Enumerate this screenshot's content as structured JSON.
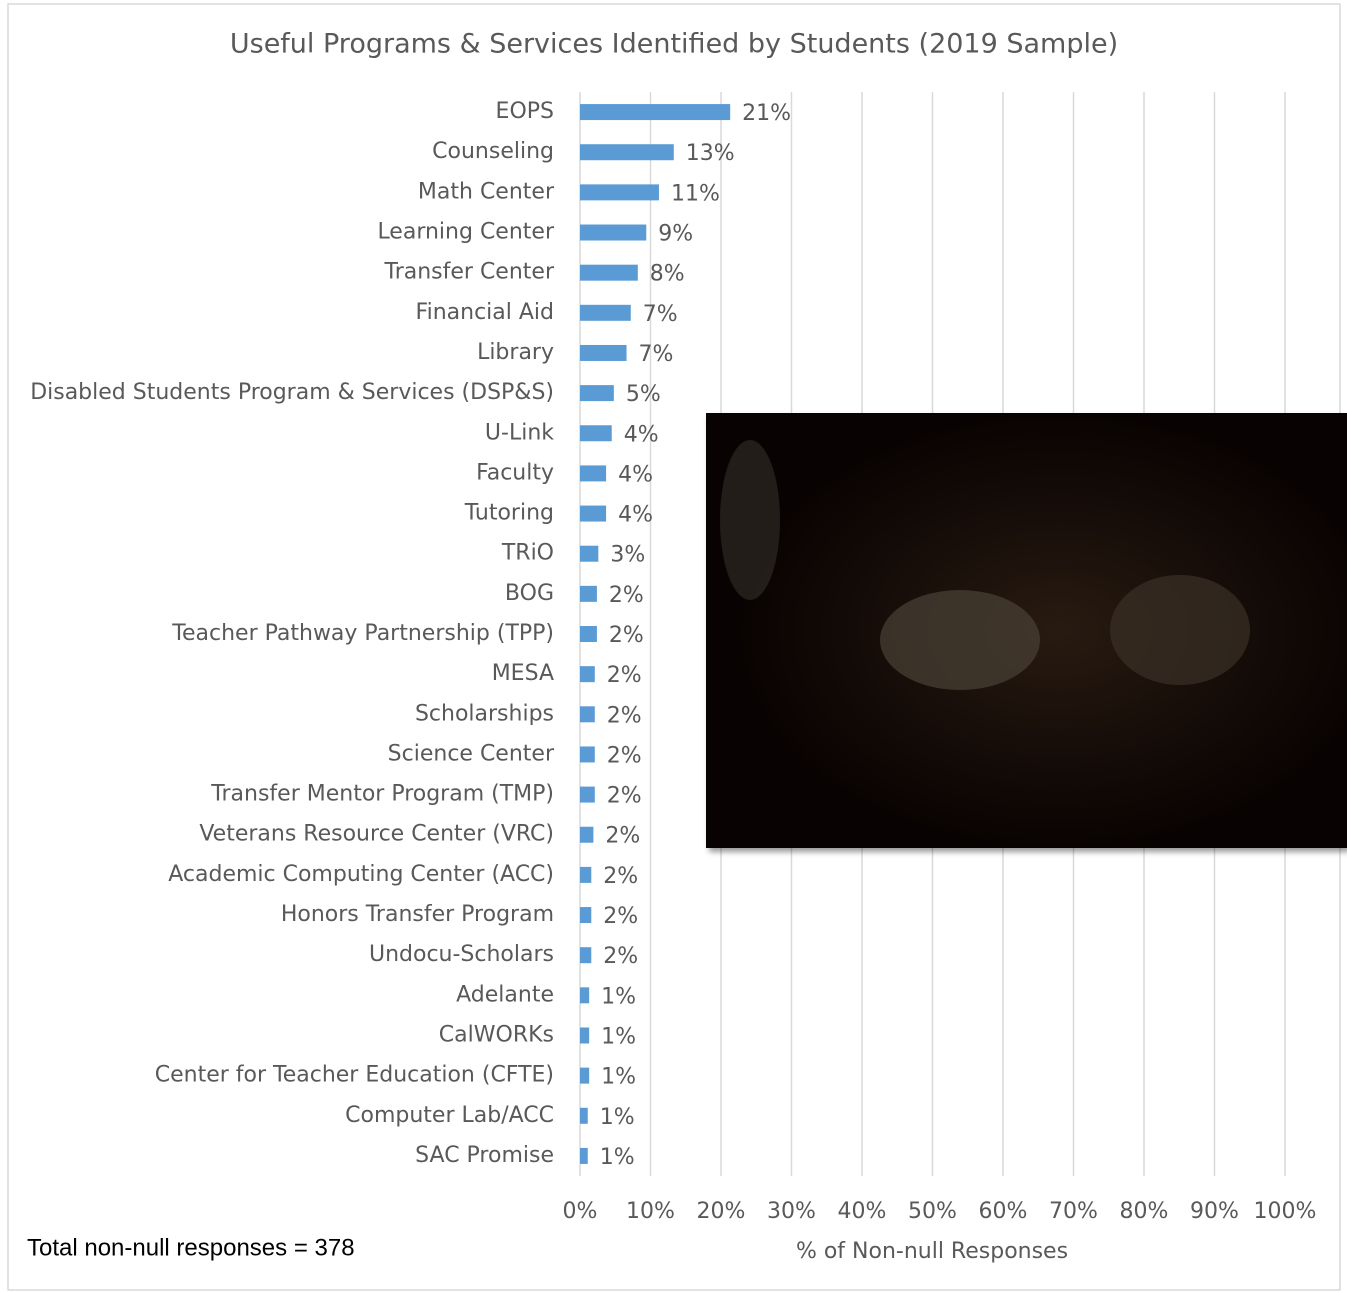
{
  "chart_data": {
    "type": "barh",
    "title": "Useful Programs & Services Identified by Students (2019 Sample)",
    "x_label": "% of Non-null Responses",
    "annotation": "Total non-null responses = 378",
    "color": "#5b9bd5",
    "grid": true,
    "categories": [
      "EOPS",
      "Counseling",
      "Math Center",
      "Learning Center",
      "Transfer Center",
      "Financial Aid",
      "Library",
      "Disabled Students Program & Services (DSP&S)",
      "U-Link",
      "Faculty",
      "Tutoring",
      "TRiO",
      "BOG",
      "Teacher Pathway Partnership (TPP)",
      "MESA",
      "Scholarships",
      "Science Center",
      "Transfer Mentor Program (TMP)",
      "Veterans Resource Center (VRC)",
      "Academic Computing Center (ACC)",
      "Honors Transfer Program",
      "Undocu-Scholars",
      "Adelante",
      "CalWORKs",
      "Center for Teacher Education (CFTE)",
      "Computer Lab/ACC",
      "SAC Promise"
    ],
    "values": [
      21.3,
      13.3,
      11.2,
      9.4,
      8.2,
      7.2,
      6.6,
      4.8,
      4.5,
      3.7,
      3.7,
      2.6,
      2.4,
      2.4,
      2.1,
      2.1,
      2.1,
      2.1,
      1.9,
      1.6,
      1.6,
      1.6,
      1.3,
      1.3,
      1.3,
      1.1,
      1.1
    ],
    "value_labels": [
      "21%",
      "13%",
      "11%",
      "9%",
      "8%",
      "7%",
      "7%",
      "5%",
      "4%",
      "4%",
      "4%",
      "3%",
      "2%",
      "2%",
      "2%",
      "2%",
      "2%",
      "2%",
      "2%",
      "2%",
      "2%",
      "2%",
      "1%",
      "1%",
      "1%",
      "1%",
      "1%"
    ],
    "xlim": [
      0,
      100
    ],
    "xticks": [
      {
        "value": 0,
        "label": "0%"
      },
      {
        "value": 10,
        "label": "10%"
      },
      {
        "value": 20,
        "label": "20%"
      },
      {
        "value": 30,
        "label": "30%"
      },
      {
        "value": 40,
        "label": "40%"
      },
      {
        "value": 50,
        "label": "50%"
      },
      {
        "value": 60,
        "label": "60%"
      },
      {
        "value": 70,
        "label": "70%"
      },
      {
        "value": 80,
        "label": "80%"
      },
      {
        "value": 90,
        "label": "90%"
      },
      {
        "value": 100,
        "label": "100%"
      }
    ]
  }
}
